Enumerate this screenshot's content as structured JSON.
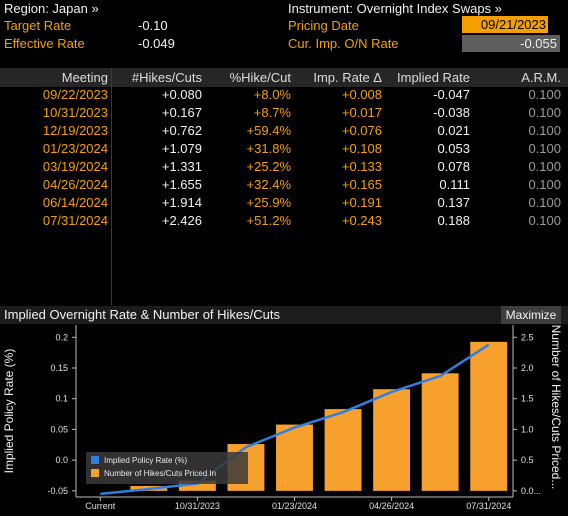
{
  "header": {
    "region_label": "Region: Japan »",
    "instrument_label": "Instrument: Overnight Index Swaps »",
    "target_rate_label": "Target Rate",
    "target_rate_value": "-0.10",
    "effective_rate_label": "Effective Rate",
    "effective_rate_value": "-0.049",
    "pricing_date_label": "Pricing Date",
    "pricing_date_value": "09/21/2023",
    "cur_imp_label": "Cur. Imp. O/N Rate",
    "cur_imp_value": "-0.055"
  },
  "table": {
    "columns": [
      "Meeting",
      "#Hikes/Cuts",
      "%Hike/Cut",
      "Imp. Rate Δ",
      "Implied Rate",
      "A.R.M."
    ],
    "rows": [
      [
        "09/22/2023",
        "+0.080",
        "+8.0%",
        "+0.008",
        "-0.047",
        "0.100"
      ],
      [
        "10/31/2023",
        "+0.167",
        "+8.7%",
        "+0.017",
        "-0.038",
        "0.100"
      ],
      [
        "12/19/2023",
        "+0.762",
        "+59.4%",
        "+0.076",
        "0.021",
        "0.100"
      ],
      [
        "01/23/2024",
        "+1.079",
        "+31.8%",
        "+0.108",
        "0.053",
        "0.100"
      ],
      [
        "03/19/2024",
        "+1.331",
        "+25.2%",
        "+0.133",
        "0.078",
        "0.100"
      ],
      [
        "04/26/2024",
        "+1.655",
        "+32.4%",
        "+0.165",
        "0.111",
        "0.100"
      ],
      [
        "06/14/2024",
        "+1.914",
        "+25.9%",
        "+0.191",
        "0.137",
        "0.100"
      ],
      [
        "07/31/2024",
        "+2.426",
        "+51.2%",
        "+0.243",
        "0.188",
        "0.100"
      ]
    ]
  },
  "chart_panel": {
    "title": "Implied Overnight Rate & Number of Hikes/Cuts",
    "maximize_label": "Maximize"
  },
  "chart_data": {
    "type": "bar",
    "categories": [
      "Current",
      "09/22/2023",
      "10/31/2023",
      "12/19/2023",
      "01/23/2024",
      "03/19/2024",
      "04/26/2024",
      "06/14/2024",
      "07/31/2024"
    ],
    "x_tick_labels": [
      "Current",
      "10/31/2023",
      "01/23/2024",
      "04/26/2024",
      "07/31/2024"
    ],
    "series": [
      {
        "name": "Implied Policy Rate (%)",
        "type": "line",
        "axis": "left",
        "color": "#2f7fe0",
        "values": [
          -0.055,
          -0.047,
          -0.038,
          0.021,
          0.053,
          0.078,
          0.111,
          0.137,
          0.188
        ]
      },
      {
        "name": "Number of Hikes/Cuts Priced In",
        "type": "bar",
        "axis": "right",
        "color": "#f7a02e",
        "values": [
          0,
          0.08,
          0.167,
          0.762,
          1.079,
          1.331,
          1.655,
          1.914,
          2.426
        ]
      }
    ],
    "ylabel": "Implied Policy Rate (%)",
    "ylabel_right": "Number of Hikes/Cuts Priced...",
    "ylim": [
      -0.06,
      0.22
    ],
    "ylim_right": [
      -0.1,
      2.7
    ],
    "yticks": [
      "0.2",
      "0.15",
      "0.1",
      "0.05",
      "0.0",
      "-0.05"
    ],
    "yticks_right": [
      "2.5",
      "2.0",
      "1.5",
      "1.0",
      "0.5",
      "0.0..."
    ],
    "legend_position": "bottom-left",
    "grid": false
  }
}
